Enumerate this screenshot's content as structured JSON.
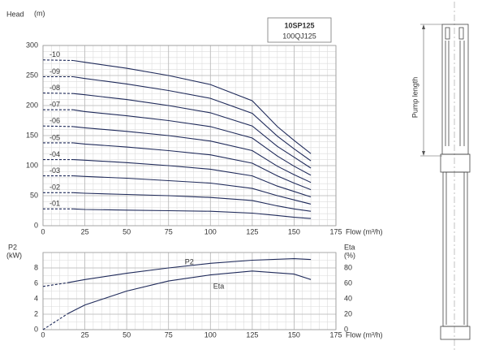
{
  "chart_data": [
    {
      "type": "line",
      "title": "10SP125",
      "subtitle": "100QJ125",
      "y_label": "Head",
      "y_label_unit": "(m)",
      "x_label": "Flow (m³/h)",
      "x": [
        0,
        18,
        25,
        50,
        75,
        100,
        125,
        140,
        150,
        160
      ],
      "dashed_until": 18,
      "xlim": [
        0,
        175
      ],
      "xticks": [
        0,
        25,
        50,
        75,
        100,
        125,
        150,
        175
      ],
      "ylim": [
        0,
        300
      ],
      "yticks": [
        0,
        50,
        100,
        150,
        200,
        250,
        300
      ],
      "grid": true,
      "series": [
        {
          "name": "-01",
          "color": "#1f2a5a",
          "values": [
            28,
            28,
            27,
            26,
            25,
            24,
            21,
            17,
            14,
            12
          ]
        },
        {
          "name": "-02",
          "color": "#1f2a5a",
          "values": [
            55,
            55,
            54,
            52,
            50,
            47,
            42,
            33,
            28,
            24
          ]
        },
        {
          "name": "-03",
          "color": "#1f2a5a",
          "values": [
            83,
            83,
            82,
            79,
            75,
            71,
            62,
            50,
            43,
            36
          ]
        },
        {
          "name": "-04",
          "color": "#1f2a5a",
          "values": [
            110,
            110,
            109,
            105,
            100,
            94,
            83,
            66,
            57,
            48
          ]
        },
        {
          "name": "-05",
          "color": "#1f2a5a",
          "values": [
            138,
            138,
            136,
            131,
            125,
            118,
            104,
            83,
            71,
            60
          ]
        },
        {
          "name": "-06",
          "color": "#1f2a5a",
          "values": [
            166,
            165,
            163,
            157,
            150,
            141,
            125,
            99,
            85,
            72
          ]
        },
        {
          "name": "-07",
          "color": "#1f2a5a",
          "values": [
            193,
            193,
            190,
            183,
            175,
            165,
            146,
            116,
            99,
            84
          ]
        },
        {
          "name": "-08",
          "color": "#1f2a5a",
          "values": [
            221,
            220,
            218,
            210,
            200,
            188,
            166,
            132,
            114,
            96
          ]
        },
        {
          "name": "-09",
          "color": "#1f2a5a",
          "values": [
            248,
            248,
            245,
            236,
            225,
            212,
            187,
            149,
            128,
            108
          ]
        },
        {
          "name": "-10",
          "color": "#1f2a5a",
          "values": [
            276,
            275,
            272,
            262,
            250,
            235,
            208,
            165,
            142,
            120
          ]
        }
      ]
    },
    {
      "type": "line",
      "y_label": "P2",
      "y_label_unit": "(kW)",
      "y2_label": "Eta",
      "y2_label_unit": "(%)",
      "x_label": "Flow (m³/h)",
      "x": [
        0,
        15,
        25,
        50,
        75,
        100,
        125,
        150,
        160
      ],
      "dashed_until": 15,
      "xlim": [
        0,
        175
      ],
      "xticks": [
        0,
        25,
        50,
        75,
        100,
        125,
        150,
        175
      ],
      "ylim": [
        0,
        10
      ],
      "yticks": [
        0,
        2,
        4,
        6,
        8
      ],
      "y2lim": [
        0,
        100
      ],
      "y2ticks": [
        0,
        20,
        40,
        60,
        80
      ],
      "grid": true,
      "series": [
        {
          "name": "P2",
          "color": "#1f2a5a",
          "values": [
            5.6,
            6.1,
            6.5,
            7.3,
            8.0,
            8.6,
            9.0,
            9.2,
            9.1
          ]
        },
        {
          "name": "Eta",
          "color": "#1f2a5a",
          "axis": "y2",
          "values": [
            0,
            21,
            32,
            50,
            63,
            71,
            76,
            72,
            65
          ]
        }
      ]
    }
  ],
  "pump_drawing": {
    "dimension_label": "Pump length"
  }
}
